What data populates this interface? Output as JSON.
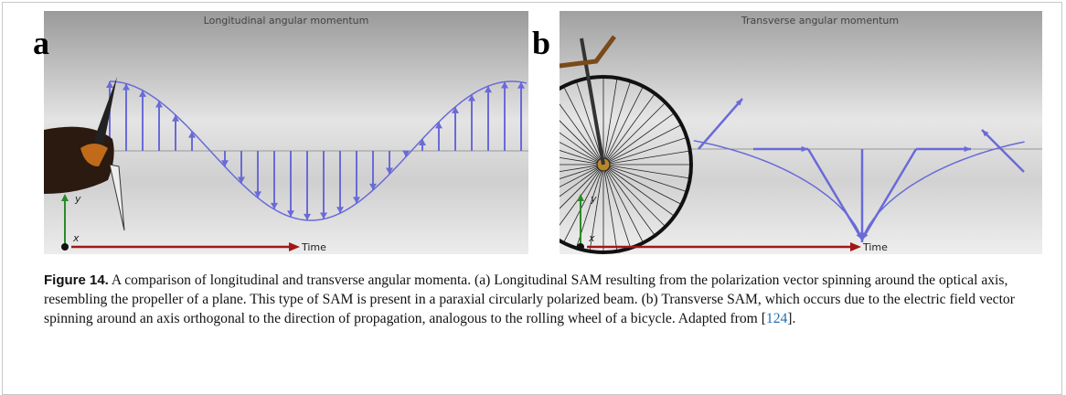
{
  "figure": {
    "panels": [
      {
        "label": "a",
        "title": "Longitudinal angular momentum",
        "axis_y": "y",
        "axis_x": "x",
        "axis_time": "Time"
      },
      {
        "label": "b",
        "title": "Transverse angular momentum",
        "axis_y": "y",
        "axis_x": "x",
        "axis_time": "Time"
      }
    ],
    "caption": {
      "label": "Figure 14.",
      "text": " A comparison of longitudinal and transverse angular momenta. (a) Longitudinal SAM resulting from the polarization vector spinning around the optical axis, resembling the propeller of a plane. This type of SAM is present in a paraxial circularly polarized beam. (b) Transverse SAM, which occurs due to the electric field vector spinning around an axis orthogonal to the direction of propagation, analogous to the rolling wheel of a bicycle. Adapted from [",
      "ref": "124",
      "end": "]."
    }
  }
}
